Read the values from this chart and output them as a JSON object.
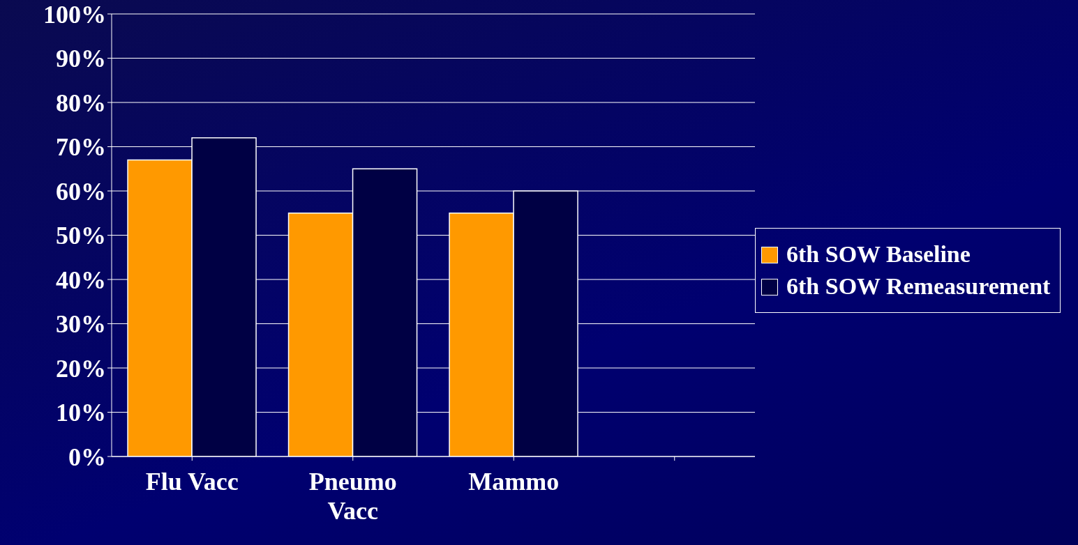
{
  "chart_data": {
    "type": "bar",
    "categories": [
      "Flu Vacc",
      "Pneumo Vacc",
      "Mammo",
      null
    ],
    "series": [
      {
        "name": "6th SOW Baseline",
        "color": "#ff9900",
        "values": [
          67,
          55,
          55,
          null
        ]
      },
      {
        "name": "6th SOW Remeasurement",
        "color": "#000044",
        "values": [
          72,
          65,
          60,
          null
        ]
      }
    ],
    "ylim": [
      0,
      100
    ],
    "yticks": [
      {
        "value": 0,
        "label": "0%"
      },
      {
        "value": 10,
        "label": "10%"
      },
      {
        "value": 20,
        "label": "20%"
      },
      {
        "value": 30,
        "label": "30%"
      },
      {
        "value": 40,
        "label": "40%"
      },
      {
        "value": 50,
        "label": "50%"
      },
      {
        "value": 60,
        "label": "60%"
      },
      {
        "value": 70,
        "label": "70%"
      },
      {
        "value": 80,
        "label": "80%"
      },
      {
        "value": 90,
        "label": "90%"
      },
      {
        "value": 100,
        "label": "100%"
      }
    ],
    "grid": "y",
    "legend": "right"
  }
}
